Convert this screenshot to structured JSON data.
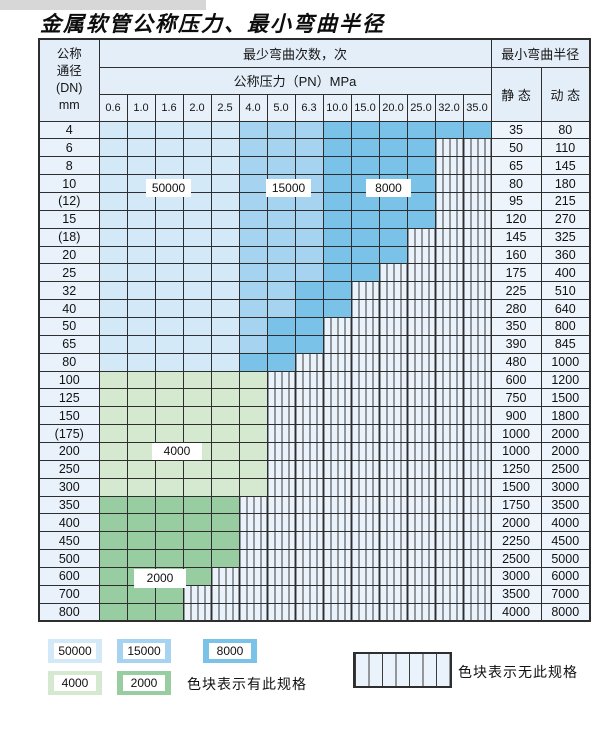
{
  "page": {
    "title": "金属软管公称压力、最小弯曲半径"
  },
  "table": {
    "header": {
      "dn_lines": [
        "公称",
        "通径",
        "(DN)",
        "mm"
      ],
      "cycles": "最少弯曲次数，次",
      "pressure": "公称压力（PN）MPa",
      "pressures": [
        "0.6",
        "1.0",
        "1.6",
        "2.0",
        "2.5",
        "4.0",
        "5.0",
        "6.3",
        "10.0",
        "15.0",
        "20.0",
        "25.0",
        "32.0",
        "35.0"
      ],
      "radius": "最小弯曲半径",
      "static": "静 态",
      "dynamic": "动 态"
    },
    "rows": [
      {
        "dn": "4",
        "group": "blue",
        "colored": 14,
        "static": "35",
        "dynamic": "80"
      },
      {
        "dn": "6",
        "group": "blue",
        "colored": 12,
        "static": "50",
        "dynamic": "110"
      },
      {
        "dn": "8",
        "group": "blue",
        "colored": 12,
        "static": "65",
        "dynamic": "145"
      },
      {
        "dn": "10",
        "group": "blue",
        "colored": 12,
        "static": "80",
        "dynamic": "180"
      },
      {
        "dn": "(12)",
        "group": "blue",
        "colored": 12,
        "static": "95",
        "dynamic": "215"
      },
      {
        "dn": "15",
        "group": "blue",
        "colored": 12,
        "static": "120",
        "dynamic": "270"
      },
      {
        "dn": "(18)",
        "group": "blue",
        "colored": 11,
        "static": "145",
        "dynamic": "325"
      },
      {
        "dn": "20",
        "group": "blue",
        "colored": 11,
        "static": "160",
        "dynamic": "360"
      },
      {
        "dn": "25",
        "group": "blue",
        "colored": 10,
        "static": "175",
        "dynamic": "400"
      },
      {
        "dn": "32",
        "group": "blue",
        "colored": 9,
        "static": "225",
        "dynamic": "510"
      },
      {
        "dn": "40",
        "group": "blue",
        "colored": 9,
        "static": "280",
        "dynamic": "640"
      },
      {
        "dn": "50",
        "group": "blue",
        "colored": 8,
        "static": "350",
        "dynamic": "800"
      },
      {
        "dn": "65",
        "group": "blue",
        "colored": 8,
        "static": "390",
        "dynamic": "845"
      },
      {
        "dn": "80",
        "group": "blue",
        "colored": 7,
        "static": "480",
        "dynamic": "1000"
      },
      {
        "dn": "100",
        "group": "green4000",
        "colored": 6,
        "static": "600",
        "dynamic": "1200"
      },
      {
        "dn": "125",
        "group": "green4000",
        "colored": 6,
        "static": "750",
        "dynamic": "1500"
      },
      {
        "dn": "150",
        "group": "green4000",
        "colored": 6,
        "static": "900",
        "dynamic": "1800"
      },
      {
        "dn": "(175)",
        "group": "green4000",
        "colored": 6,
        "static": "1000",
        "dynamic": "2000"
      },
      {
        "dn": "200",
        "group": "green4000",
        "colored": 6,
        "static": "1000",
        "dynamic": "2000"
      },
      {
        "dn": "250",
        "group": "green4000",
        "colored": 6,
        "static": "1250",
        "dynamic": "2500"
      },
      {
        "dn": "300",
        "group": "green4000",
        "colored": 6,
        "static": "1500",
        "dynamic": "3000"
      },
      {
        "dn": "350",
        "group": "green2000",
        "colored": 5,
        "static": "1750",
        "dynamic": "3500"
      },
      {
        "dn": "400",
        "group": "green2000",
        "colored": 5,
        "static": "2000",
        "dynamic": "4000"
      },
      {
        "dn": "450",
        "group": "green2000",
        "colored": 5,
        "static": "2250",
        "dynamic": "4500"
      },
      {
        "dn": "500",
        "group": "green2000",
        "colored": 5,
        "static": "2500",
        "dynamic": "5000"
      },
      {
        "dn": "600",
        "group": "green2000",
        "colored": 4,
        "static": "3000",
        "dynamic": "6000"
      },
      {
        "dn": "700",
        "group": "green2000",
        "colored": 3,
        "static": "3500",
        "dynamic": "7000"
      },
      {
        "dn": "800",
        "group": "green2000",
        "colored": 3,
        "static": "4000",
        "dynamic": "8000"
      }
    ]
  },
  "labels": {
    "b50000": "50000",
    "b15000": "15000",
    "b8000": "8000",
    "b4000": "4000",
    "b2000": "2000"
  },
  "legend": {
    "items": [
      {
        "label": "50000",
        "color": "#d4e9f7"
      },
      {
        "label": "15000",
        "color": "#a6d4f0"
      },
      {
        "label": "8000",
        "color": "#7bc2e9"
      },
      {
        "label": "4000",
        "color": "#d5e8d0"
      },
      {
        "label": "2000",
        "color": "#98cda1"
      }
    ],
    "has_text": "色块表示有此规格",
    "none_text": "色块表示无此规格"
  },
  "colors": {
    "c50000": "#d4e9f7",
    "c15000": "#a6d4f0",
    "c8000": "#7bc2e9",
    "c4000": "#d5e8d0",
    "c2000": "#98cda1"
  }
}
